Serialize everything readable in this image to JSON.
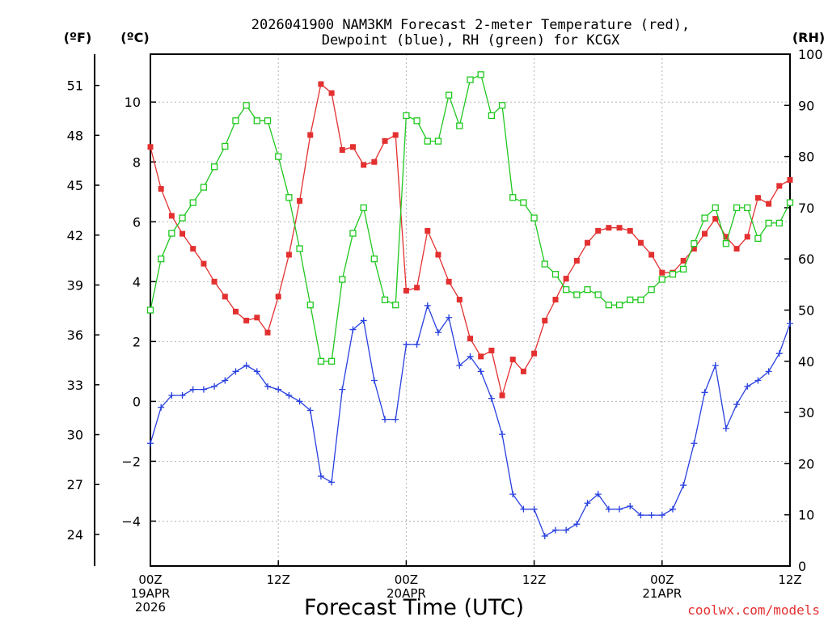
{
  "chart_data": {
    "type": "line",
    "title_line1": "2026041900 NAM3KM Forecast 2-meter Temperature (red),",
    "title_line2": "Dewpoint (blue), RH (green) for KCGX",
    "xlabel": "Forecast Time (UTC)",
    "credit": "coolwx.com/models",
    "unit_f": "(ºF)",
    "unit_c": "(ºC)",
    "unit_rh": "(RH)",
    "x_range_hours": [
      0,
      60
    ],
    "c_range": [
      -5.5,
      11.6
    ],
    "rh_range": [
      0,
      100
    ],
    "c_ticks": [
      -4,
      -2,
      0,
      2,
      4,
      6,
      8,
      10
    ],
    "c_tick_labels": [
      "−4",
      "−2",
      "0",
      "2",
      "4",
      "6",
      "8",
      "10"
    ],
    "f_ticks": [
      24,
      27,
      30,
      33,
      36,
      39,
      42,
      45,
      48,
      51
    ],
    "f_tick_labels": [
      "24",
      "27",
      "30",
      "33",
      "36",
      "39",
      "42",
      "45",
      "48",
      "51"
    ],
    "rh_ticks": [
      0,
      10,
      20,
      30,
      40,
      50,
      60,
      70,
      80,
      90,
      100
    ],
    "rh_tick_labels": [
      "0",
      "10",
      "20",
      "30",
      "40",
      "50",
      "60",
      "70",
      "80",
      "90",
      "100"
    ],
    "x_ticks": [
      {
        "hour": 0,
        "lines": [
          "00Z",
          "19APR",
          "2026"
        ]
      },
      {
        "hour": 12,
        "lines": [
          "12Z"
        ]
      },
      {
        "hour": 24,
        "lines": [
          "00Z",
          "20APR"
        ]
      },
      {
        "hour": 36,
        "lines": [
          "12Z"
        ]
      },
      {
        "hour": 48,
        "lines": [
          "00Z",
          "21APR"
        ]
      },
      {
        "hour": 60,
        "lines": [
          "12Z"
        ]
      }
    ],
    "series": [
      {
        "name": "2-meter Temperature",
        "units": "C",
        "color": "#e33030",
        "marker": "filled-square",
        "values": [
          8.5,
          7.1,
          6.2,
          5.6,
          5.1,
          4.6,
          4.0,
          3.5,
          3.0,
          2.7,
          2.8,
          2.3,
          3.5,
          4.9,
          6.7,
          8.9,
          10.6,
          10.3,
          8.4,
          8.5,
          7.9,
          8.0,
          8.7,
          8.9,
          3.7,
          3.8,
          5.7,
          4.9,
          4.0,
          3.4,
          2.1,
          1.5,
          1.7,
          0.2,
          1.4,
          1.0,
          1.6,
          2.7,
          3.4,
          4.1,
          4.7,
          5.3,
          5.7,
          5.8,
          5.8,
          5.7,
          5.3,
          4.9,
          4.3,
          4.3,
          4.7,
          5.1,
          5.6,
          6.1,
          5.5,
          5.1,
          5.5,
          6.8,
          6.6,
          7.2,
          7.4
        ]
      },
      {
        "name": "Dewpoint",
        "units": "C",
        "color": "#2840e0",
        "marker": "plus",
        "values": [
          -1.4,
          -0.2,
          0.2,
          0.2,
          0.4,
          0.4,
          0.5,
          0.7,
          1.0,
          1.2,
          1.0,
          0.5,
          0.4,
          0.2,
          0.0,
          -0.3,
          -2.5,
          -2.7,
          0.4,
          2.4,
          2.7,
          0.7,
          -0.6,
          -0.6,
          1.9,
          1.9,
          3.2,
          2.3,
          2.8,
          1.2,
          1.5,
          1.0,
          0.1,
          -1.1,
          -3.1,
          -3.6,
          -3.6,
          -4.5,
          -4.3,
          -4.3,
          -4.1,
          -3.4,
          -3.1,
          -3.6,
          -3.6,
          -3.5,
          -3.8,
          -3.8,
          -3.8,
          -3.6,
          -2.8,
          -1.4,
          0.3,
          1.2,
          -0.9,
          -0.1,
          0.5,
          0.7,
          1.0,
          1.6,
          2.6
        ]
      },
      {
        "name": "RH",
        "units": "%",
        "color": "#20c820",
        "marker": "open-square",
        "values": [
          50,
          60,
          65,
          68,
          71,
          74,
          78,
          82,
          87,
          90,
          87,
          87,
          80,
          72,
          62,
          51,
          40,
          40,
          56,
          65,
          70,
          60,
          52,
          51,
          88,
          87,
          83,
          83,
          92,
          86,
          95,
          96,
          88,
          90,
          72,
          71,
          68,
          59,
          57,
          54,
          53,
          54,
          53,
          51,
          51,
          52,
          52,
          54,
          56,
          57,
          58,
          63,
          68,
          70,
          63,
          70,
          70,
          64,
          67,
          67,
          71
        ]
      }
    ]
  }
}
